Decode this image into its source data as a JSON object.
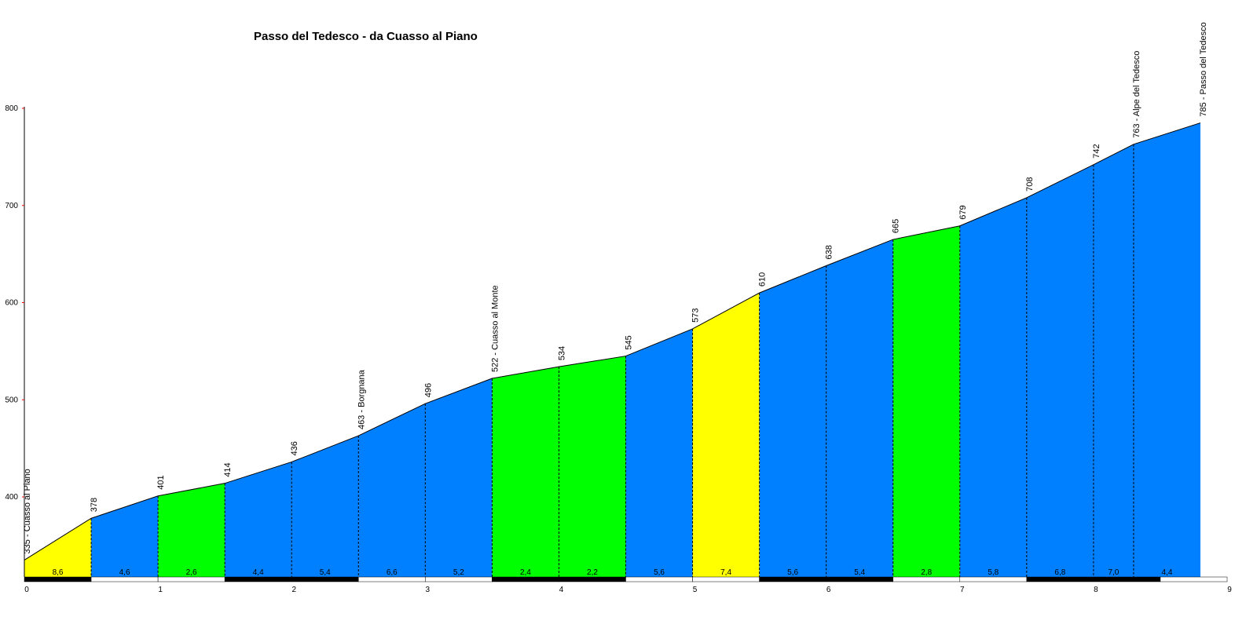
{
  "chart_data": {
    "type": "area",
    "title": "Passo del Tedesco - da Cuasso al Piano",
    "xlabel": "",
    "ylabel": "",
    "xlim": [
      0,
      9
    ],
    "ylim": [
      330,
      800
    ],
    "x_ticks": [
      0,
      1,
      2,
      3,
      4,
      5,
      6,
      7,
      8,
      9
    ],
    "y_ticks": [
      400,
      500,
      600,
      700,
      800
    ],
    "points": [
      {
        "x": 0,
        "y": 335,
        "label": "335 - Cuasso al Piano"
      },
      {
        "x": 0.5,
        "y": 378,
        "label": "378"
      },
      {
        "x": 1.0,
        "y": 401,
        "label": "401"
      },
      {
        "x": 1.5,
        "y": 414,
        "label": "414"
      },
      {
        "x": 2.0,
        "y": 436,
        "label": "436"
      },
      {
        "x": 2.5,
        "y": 463,
        "label": "463 - Borgnana"
      },
      {
        "x": 3.0,
        "y": 496,
        "label": "496"
      },
      {
        "x": 3.5,
        "y": 522,
        "label": "522 - Cuasso al Monte"
      },
      {
        "x": 4.0,
        "y": 534,
        "label": "534"
      },
      {
        "x": 4.5,
        "y": 545,
        "label": "545"
      },
      {
        "x": 5.0,
        "y": 573,
        "label": "573"
      },
      {
        "x": 5.5,
        "y": 610,
        "label": "610"
      },
      {
        "x": 6.0,
        "y": 638,
        "label": "638"
      },
      {
        "x": 6.5,
        "y": 665,
        "label": "665"
      },
      {
        "x": 7.0,
        "y": 679,
        "label": "679"
      },
      {
        "x": 7.5,
        "y": 708,
        "label": "708"
      },
      {
        "x": 8.0,
        "y": 742,
        "label": "742"
      },
      {
        "x": 8.3,
        "y": 763,
        "label": "763 - Alpe del Tedesco"
      },
      {
        "x": 8.8,
        "y": 785,
        "label": "785 - Passo del Tedesco"
      }
    ],
    "segments": [
      {
        "gradient": "8,6",
        "color": "#ffff00"
      },
      {
        "gradient": "4,6",
        "color": "#0080ff"
      },
      {
        "gradient": "2,6",
        "color": "#00ff00"
      },
      {
        "gradient": "4,4",
        "color": "#0080ff"
      },
      {
        "gradient": "5,4",
        "color": "#0080ff"
      },
      {
        "gradient": "6,6",
        "color": "#0080ff"
      },
      {
        "gradient": "5,2",
        "color": "#0080ff"
      },
      {
        "gradient": "2,4",
        "color": "#00ff00"
      },
      {
        "gradient": "2,2",
        "color": "#00ff00"
      },
      {
        "gradient": "5,6",
        "color": "#0080ff"
      },
      {
        "gradient": "7,4",
        "color": "#ffff00"
      },
      {
        "gradient": "5,6",
        "color": "#0080ff"
      },
      {
        "gradient": "5,4",
        "color": "#0080ff"
      },
      {
        "gradient": "2,8",
        "color": "#00ff00"
      },
      {
        "gradient": "5,8",
        "color": "#0080ff"
      },
      {
        "gradient": "6,8",
        "color": "#0080ff"
      },
      {
        "gradient": "7,0",
        "color": "#0080ff"
      },
      {
        "gradient": "4,4",
        "color": "#0080ff"
      }
    ],
    "colors": {
      "axis": "#000000",
      "y_tick_mark": "#ff0000",
      "bar_dark": "#000000",
      "bar_light": "#ffffff"
    },
    "grid": false,
    "legend": "none"
  }
}
